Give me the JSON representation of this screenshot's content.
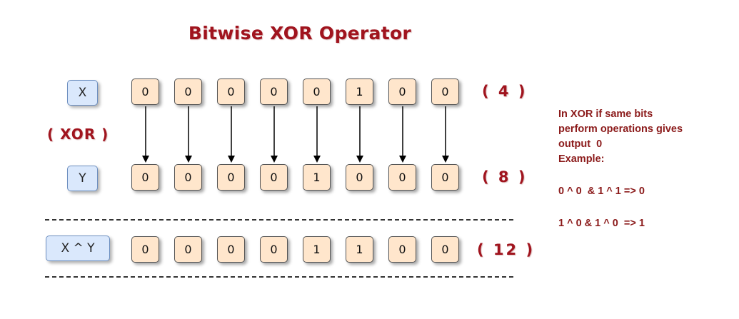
{
  "title": "Bitwise XOR Operator",
  "operator_label": "( XOR )",
  "rows": [
    {
      "label": "X",
      "bits": [
        "0",
        "0",
        "0",
        "0",
        "0",
        "1",
        "0",
        "0"
      ],
      "decimal": "( 4 )"
    },
    {
      "label": "Y",
      "bits": [
        "0",
        "0",
        "0",
        "0",
        "1",
        "0",
        "0",
        "0"
      ],
      "decimal": "( 8 )"
    },
    {
      "label": "X ^ Y",
      "bits": [
        "0",
        "0",
        "0",
        "0",
        "1",
        "1",
        "0",
        "0"
      ],
      "decimal": "( 12 )"
    }
  ],
  "note": {
    "line1": "In XOR if same bits",
    "line2": "perform operations gives",
    "line3": "output  0",
    "line4": "Example:",
    "example1": "0 ^ 0  & 1 ^ 1 => 0",
    "example2": "1 ^ 0 & 1 ^ 0  => 1"
  },
  "colors": {
    "title": "#a0141e",
    "bit_fill": "#ffe6cc",
    "label_fill": "#dae8fc",
    "label_border": "#6c8ebf"
  }
}
